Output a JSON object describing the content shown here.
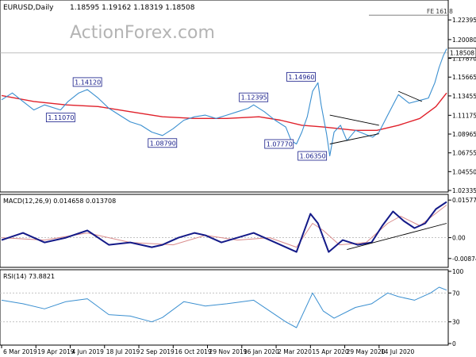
{
  "chart_data": [
    {
      "type": "line",
      "panel": "price",
      "title": "EURUSD,Daily",
      "ohlc": [
        "1.18595",
        "1.19162",
        "1.18319",
        "1.18508"
      ],
      "watermark": "ActionForex.com",
      "yticks": [
        "1.22395",
        "1.20080",
        "1.17870",
        "1.15665",
        "1.13455",
        "1.11175",
        "1.08965",
        "1.06755",
        "1.04550",
        "1.02335"
      ],
      "ylim": [
        1.0234,
        1.2455
      ],
      "last_value": "1.18508",
      "last_value_num": 1.18508,
      "fe_label": "FE 161.8",
      "fe_value": 1.2295,
      "price_points": [
        [
          0,
          1.13
        ],
        [
          10,
          1.138
        ],
        [
          20,
          1.128
        ],
        [
          30,
          1.118
        ],
        [
          40,
          1.124
        ],
        [
          55,
          1.118
        ],
        [
          62,
          1.128
        ],
        [
          72,
          1.138
        ],
        [
          80,
          1.142
        ],
        [
          90,
          1.132
        ],
        [
          100,
          1.12
        ],
        [
          110,
          1.112
        ],
        [
          120,
          1.104
        ],
        [
          130,
          1.1
        ],
        [
          140,
          1.092
        ],
        [
          150,
          1.088
        ],
        [
          160,
          1.096
        ],
        [
          170,
          1.106
        ],
        [
          180,
          1.11
        ],
        [
          190,
          1.112
        ],
        [
          200,
          1.108
        ],
        [
          210,
          1.112
        ],
        [
          220,
          1.116
        ],
        [
          230,
          1.12
        ],
        [
          235,
          1.124
        ],
        [
          245,
          1.116
        ],
        [
          255,
          1.106
        ],
        [
          265,
          1.098
        ],
        [
          270,
          1.082
        ],
        [
          275,
          1.078
        ],
        [
          280,
          1.092
        ],
        [
          285,
          1.11
        ],
        [
          290,
          1.14
        ],
        [
          295,
          1.15
        ],
        [
          298,
          1.124
        ],
        [
          303,
          1.09
        ],
        [
          306,
          1.064
        ],
        [
          310,
          1.092
        ],
        [
          316,
          1.1
        ],
        [
          322,
          1.082
        ],
        [
          330,
          1.094
        ],
        [
          338,
          1.09
        ],
        [
          346,
          1.086
        ],
        [
          352,
          1.092
        ],
        [
          360,
          1.112
        ],
        [
          365,
          1.124
        ],
        [
          370,
          1.136
        ],
        [
          380,
          1.126
        ],
        [
          392,
          1.13
        ],
        [
          398,
          1.132
        ],
        [
          404,
          1.15
        ],
        [
          408,
          1.168
        ],
        [
          412,
          1.182
        ],
        [
          415,
          1.19
        ]
      ],
      "ma_points": [
        [
          0,
          1.135
        ],
        [
          30,
          1.128
        ],
        [
          60,
          1.124
        ],
        [
          90,
          1.122
        ],
        [
          120,
          1.116
        ],
        [
          150,
          1.11
        ],
        [
          180,
          1.108
        ],
        [
          210,
          1.108
        ],
        [
          240,
          1.11
        ],
        [
          260,
          1.106
        ],
        [
          280,
          1.1
        ],
        [
          300,
          1.098
        ],
        [
          330,
          1.094
        ],
        [
          350,
          1.094
        ],
        [
          370,
          1.1
        ],
        [
          390,
          1.108
        ],
        [
          405,
          1.122
        ],
        [
          415,
          1.138
        ]
      ],
      "labels": [
        {
          "text": "1.14120",
          "i": 80,
          "y": 1.142,
          "pos": "above"
        },
        {
          "text": "1.11070",
          "i": 55,
          "y": 1.118,
          "pos": "below"
        },
        {
          "text": "1.08790",
          "i": 150,
          "y": 1.088,
          "pos": "below"
        },
        {
          "text": "1.12395",
          "i": 235,
          "y": 1.124,
          "pos": "above"
        },
        {
          "text": "1.14960",
          "i": 294,
          "y": 1.15,
          "pos": "above-left"
        },
        {
          "text": "1.07770",
          "i": 275,
          "y": 1.078,
          "pos": "left"
        },
        {
          "text": "1.06350",
          "i": 306,
          "y": 1.064,
          "pos": "left"
        }
      ],
      "triangle_upper": [
        [
          306,
          1.112
        ],
        [
          352,
          1.1
        ]
      ],
      "triangle_lower": [
        [
          306,
          1.078
        ],
        [
          352,
          1.09
        ]
      ],
      "channel": [
        [
          370,
          1.14
        ],
        [
          392,
          1.128
        ]
      ]
    },
    {
      "type": "line",
      "panel": "macd",
      "title": "MACD(12,26,9) 0.014658 0.013708",
      "yticks": [
        "0.015773",
        "0.00",
        "-0.008749"
      ],
      "ylim": [
        -0.0118,
        0.0175
      ],
      "macd_points": [
        [
          0,
          -0.001
        ],
        [
          20,
          0.002
        ],
        [
          40,
          -0.002
        ],
        [
          60,
          0.0
        ],
        [
          80,
          0.003
        ],
        [
          100,
          -0.003
        ],
        [
          120,
          -0.002
        ],
        [
          140,
          -0.004
        ],
        [
          150,
          -0.003
        ],
        [
          165,
          0.0
        ],
        [
          180,
          0.002
        ],
        [
          190,
          0.001
        ],
        [
          205,
          -0.002
        ],
        [
          220,
          0.0
        ],
        [
          235,
          0.002
        ],
        [
          250,
          -0.001
        ],
        [
          265,
          -0.004
        ],
        [
          275,
          -0.006
        ],
        [
          288,
          0.01
        ],
        [
          295,
          0.006
        ],
        [
          305,
          -0.006
        ],
        [
          318,
          -0.001
        ],
        [
          332,
          -0.003
        ],
        [
          345,
          -0.002
        ],
        [
          355,
          0.005
        ],
        [
          365,
          0.011
        ],
        [
          375,
          0.007
        ],
        [
          385,
          0.004
        ],
        [
          395,
          0.006
        ],
        [
          405,
          0.012
        ],
        [
          415,
          0.015
        ]
      ],
      "signal_points": [
        [
          0,
          0.0
        ],
        [
          40,
          -0.001
        ],
        [
          80,
          0.002
        ],
        [
          120,
          -0.002
        ],
        [
          160,
          -0.003
        ],
        [
          190,
          0.001
        ],
        [
          220,
          -0.001
        ],
        [
          250,
          0.0
        ],
        [
          275,
          -0.004
        ],
        [
          290,
          0.006
        ],
        [
          300,
          0.003
        ],
        [
          315,
          -0.003
        ],
        [
          340,
          -0.002
        ],
        [
          360,
          0.006
        ],
        [
          372,
          0.009
        ],
        [
          390,
          0.005
        ],
        [
          415,
          0.0137
        ]
      ],
      "trendline": [
        [
          322,
          -0.005
        ],
        [
          415,
          0.006
        ]
      ]
    },
    {
      "type": "line",
      "panel": "rsi",
      "title": "RSI(14) 73.8821",
      "yticks": [
        "100",
        "70",
        "30",
        "0"
      ],
      "ylim": [
        0,
        100
      ],
      "rsi_points": [
        [
          0,
          60
        ],
        [
          20,
          55
        ],
        [
          40,
          48
        ],
        [
          60,
          58
        ],
        [
          80,
          62
        ],
        [
          100,
          40
        ],
        [
          120,
          38
        ],
        [
          140,
          30
        ],
        [
          150,
          36
        ],
        [
          170,
          58
        ],
        [
          190,
          52
        ],
        [
          210,
          55
        ],
        [
          235,
          60
        ],
        [
          250,
          45
        ],
        [
          265,
          30
        ],
        [
          275,
          22
        ],
        [
          290,
          70
        ],
        [
          300,
          45
        ],
        [
          310,
          35
        ],
        [
          330,
          50
        ],
        [
          345,
          55
        ],
        [
          360,
          70
        ],
        [
          370,
          65
        ],
        [
          385,
          60
        ],
        [
          400,
          70
        ],
        [
          408,
          78
        ],
        [
          415,
          74
        ]
      ]
    }
  ],
  "x_axis": {
    "count": 416,
    "ticks": [
      {
        "i": 0,
        "label": "6 Mar 2019"
      },
      {
        "i": 32,
        "label": "19 Apr 2019"
      },
      {
        "i": 64,
        "label": "4 Jun 2019"
      },
      {
        "i": 96,
        "label": "18 Jul 2019"
      },
      {
        "i": 128,
        "label": "2 Sep 2019"
      },
      {
        "i": 160,
        "label": "16 Oct 2019"
      },
      {
        "i": 192,
        "label": "29 Nov 2019"
      },
      {
        "i": 224,
        "label": "16 Jan 2020"
      },
      {
        "i": 256,
        "label": "2 Mar 2020"
      },
      {
        "i": 288,
        "label": "15 Apr 2020"
      },
      {
        "i": 320,
        "label": "29 May 2020"
      },
      {
        "i": 352,
        "label": "14 Jul 2020"
      }
    ]
  },
  "colors": {
    "price": "#3a8fd0",
    "ma": "#e0202a",
    "macd": "#141a88",
    "signal": "#d98b8b",
    "rsi": "#3a8fd0",
    "frame": "#000000",
    "watermark": "#b4b4b4",
    "label_bg": "#ffffff",
    "label_border": "#141a88",
    "label_text": "#141a88"
  }
}
